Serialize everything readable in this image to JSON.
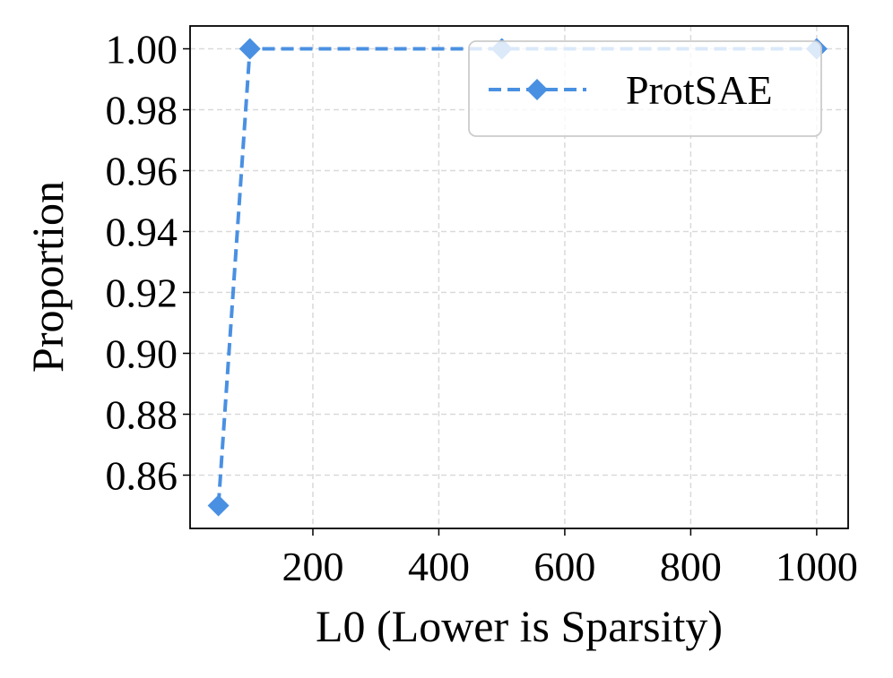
{
  "chart_data": {
    "type": "line",
    "xlabel": "L0 (Lower is Sparsity)",
    "ylabel": "Proportion",
    "xlim": [
      5,
      1050
    ],
    "ylim": [
      0.8425,
      1.0075
    ],
    "xticks": [
      200,
      400,
      600,
      800,
      1000
    ],
    "xtick_labels": [
      "200",
      "400",
      "600",
      "800",
      "1000"
    ],
    "yticks": [
      0.86,
      0.88,
      0.9,
      0.92,
      0.94,
      0.96,
      0.98,
      1.0
    ],
    "ytick_labels": [
      "0.86",
      "0.88",
      "0.90",
      "0.92",
      "0.94",
      "0.96",
      "0.98",
      "1.00"
    ],
    "grid": true,
    "legend_position": "top-right",
    "series": [
      {
        "name": "ProtSAE",
        "color": "#4a90e2",
        "line_style": "dashed",
        "marker": "diamond",
        "x": [
          50,
          100,
          500,
          1000
        ],
        "y": [
          0.85,
          1.0,
          1.0,
          1.0
        ]
      }
    ]
  }
}
